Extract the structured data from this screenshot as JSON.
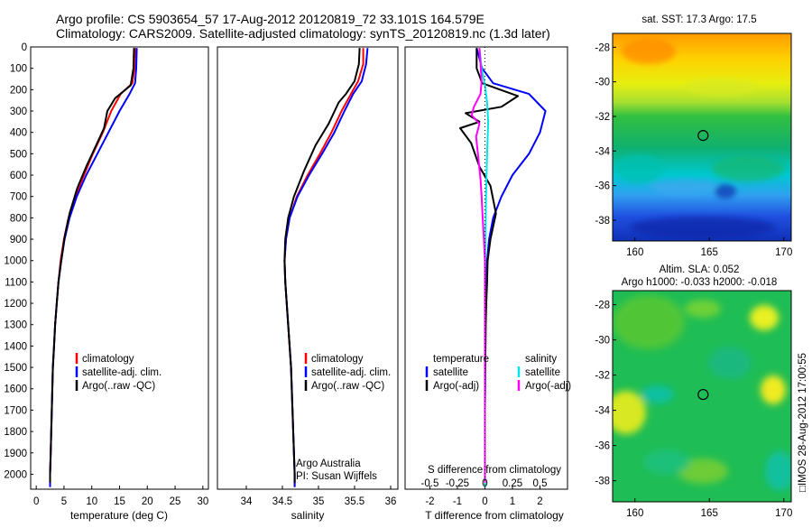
{
  "header": {
    "line1": "Argo profile: CS 5903654_57 17-Aug-2012 20120819_72 33.101S 164.579E",
    "line2": "Climatology: CARS2009. Satellite-adjusted climatology: synTS_20120819.nc (1.3d later)"
  },
  "colors": {
    "red": "#ff0000",
    "blue": "#0000ff",
    "black": "#000000",
    "cyan": "#00e5e5",
    "magenta": "#ff00ff"
  },
  "chart_data": [
    {
      "type": "line",
      "id": "temperature",
      "xlabel": "temperature (deg C)",
      "ylim": [
        2070,
        0
      ],
      "xlim": [
        -1,
        31
      ],
      "xticks": [
        0,
        5,
        10,
        15,
        20,
        25,
        30
      ],
      "yticks": [
        0,
        100,
        200,
        300,
        400,
        500,
        600,
        700,
        800,
        900,
        1000,
        1100,
        1200,
        1300,
        1400,
        1500,
        1600,
        1700,
        1800,
        1900,
        2000
      ],
      "legend": [
        "climatology",
        "satellite-adj. clim.",
        "Argo(..raw -QC)"
      ],
      "series": [
        {
          "name": "climatology",
          "color": "red",
          "points": [
            [
              17.8,
              5
            ],
            [
              17.7,
              100
            ],
            [
              17.3,
              170
            ],
            [
              15.2,
              220
            ],
            [
              13.5,
              300
            ],
            [
              12.0,
              400
            ],
            [
              10.2,
              500
            ],
            [
              8.6,
              600
            ],
            [
              7.0,
              700
            ],
            [
              5.8,
              800
            ],
            [
              5.0,
              900
            ],
            [
              4.4,
              1000
            ],
            [
              4.0,
              1100
            ],
            [
              3.7,
              1200
            ],
            [
              3.4,
              1300
            ],
            [
              3.2,
              1400
            ],
            [
              3.0,
              1500
            ],
            [
              2.9,
              1600
            ],
            [
              2.8,
              1700
            ],
            [
              2.7,
              1800
            ],
            [
              2.6,
              1900
            ],
            [
              2.5,
              2000
            ],
            [
              2.5,
              2060
            ]
          ]
        },
        {
          "name": "satellite-adj. clim.",
          "color": "blue",
          "points": [
            [
              18.1,
              5
            ],
            [
              18.0,
              100
            ],
            [
              17.8,
              170
            ],
            [
              16.8,
              220
            ],
            [
              15.0,
              300
            ],
            [
              13.0,
              400
            ],
            [
              11.0,
              500
            ],
            [
              9.0,
              600
            ],
            [
              7.3,
              700
            ],
            [
              6.0,
              800
            ],
            [
              5.1,
              900
            ],
            [
              4.5,
              1000
            ],
            [
              4.0,
              1100
            ],
            [
              3.7,
              1200
            ],
            [
              3.4,
              1300
            ],
            [
              3.2,
              1400
            ],
            [
              3.0,
              1500
            ],
            [
              2.9,
              1600
            ],
            [
              2.8,
              1700
            ],
            [
              2.7,
              1800
            ],
            [
              2.6,
              1900
            ],
            [
              2.5,
              2000
            ],
            [
              2.5,
              2060
            ]
          ]
        },
        {
          "name": "Argo(..raw -QC)",
          "color": "black",
          "points": [
            [
              17.6,
              5
            ],
            [
              17.5,
              100
            ],
            [
              17.0,
              180
            ],
            [
              14.2,
              240
            ],
            [
              12.8,
              300
            ],
            [
              12.2,
              380
            ],
            [
              10.8,
              460
            ],
            [
              9.0,
              560
            ],
            [
              7.4,
              660
            ],
            [
              6.0,
              780
            ],
            [
              5.1,
              890
            ],
            [
              4.5,
              1000
            ],
            [
              4.0,
              1100
            ],
            [
              3.7,
              1200
            ],
            [
              3.4,
              1300
            ],
            [
              3.2,
              1400
            ],
            [
              3.0,
              1500
            ],
            [
              2.9,
              1600
            ],
            [
              2.8,
              1700
            ],
            [
              2.7,
              1800
            ],
            [
              2.6,
              1900
            ],
            [
              2.5,
              2000
            ],
            [
              2.5,
              2040
            ]
          ]
        }
      ]
    },
    {
      "type": "line",
      "id": "salinity",
      "xlabel": "salinity",
      "ylim": [
        2070,
        0
      ],
      "xlim": [
        33.6,
        36.1
      ],
      "xticks": [
        34,
        34.5,
        35,
        35.5,
        36
      ],
      "legend": [
        "climatology",
        "satellite-adj. clim.",
        "Argo(..raw -QC)"
      ],
      "annotation": [
        "Argo Australia",
        "PI: Susan Wijffels"
      ],
      "series": [
        {
          "name": "climatology",
          "color": "red",
          "points": [
            [
              35.62,
              5
            ],
            [
              35.62,
              80
            ],
            [
              35.55,
              160
            ],
            [
              35.45,
              220
            ],
            [
              35.32,
              300
            ],
            [
              35.18,
              400
            ],
            [
              35.02,
              500
            ],
            [
              34.85,
              600
            ],
            [
              34.7,
              700
            ],
            [
              34.6,
              800
            ],
            [
              34.55,
              900
            ],
            [
              34.53,
              1000
            ],
            [
              34.54,
              1100
            ],
            [
              34.56,
              1200
            ],
            [
              34.58,
              1300
            ],
            [
              34.6,
              1400
            ],
            [
              34.62,
              1500
            ],
            [
              34.63,
              1600
            ],
            [
              34.64,
              1700
            ],
            [
              34.65,
              1800
            ],
            [
              34.66,
              1900
            ],
            [
              34.67,
              2000
            ],
            [
              34.67,
              2060
            ]
          ]
        },
        {
          "name": "satellite-adj. clim.",
          "color": "blue",
          "points": [
            [
              35.68,
              5
            ],
            [
              35.66,
              80
            ],
            [
              35.6,
              160
            ],
            [
              35.48,
              220
            ],
            [
              35.36,
              300
            ],
            [
              35.22,
              400
            ],
            [
              35.05,
              500
            ],
            [
              34.87,
              600
            ],
            [
              34.71,
              700
            ],
            [
              34.6,
              800
            ],
            [
              34.55,
              900
            ],
            [
              34.53,
              1000
            ],
            [
              34.54,
              1100
            ],
            [
              34.56,
              1200
            ],
            [
              34.58,
              1300
            ],
            [
              34.6,
              1400
            ],
            [
              34.62,
              1500
            ],
            [
              34.63,
              1600
            ],
            [
              34.64,
              1700
            ],
            [
              34.65,
              1800
            ],
            [
              34.66,
              1900
            ],
            [
              34.67,
              2000
            ],
            [
              34.67,
              2060
            ]
          ]
        },
        {
          "name": "Argo(..raw -QC)",
          "color": "black",
          "points": [
            [
              35.57,
              5
            ],
            [
              35.56,
              80
            ],
            [
              35.5,
              160
            ],
            [
              35.38,
              220
            ],
            [
              35.28,
              260
            ],
            [
              35.14,
              360
            ],
            [
              34.96,
              460
            ],
            [
              34.8,
              580
            ],
            [
              34.66,
              700
            ],
            [
              34.58,
              800
            ],
            [
              34.54,
              900
            ],
            [
              34.53,
              1000
            ],
            [
              34.54,
              1100
            ],
            [
              34.56,
              1200
            ],
            [
              34.58,
              1300
            ],
            [
              34.6,
              1400
            ],
            [
              34.62,
              1500
            ],
            [
              34.63,
              1600
            ],
            [
              34.64,
              1700
            ],
            [
              34.65,
              1800
            ],
            [
              34.66,
              1900
            ],
            [
              34.67,
              2000
            ],
            [
              34.67,
              2040
            ]
          ]
        }
      ]
    },
    {
      "type": "line",
      "id": "difference",
      "xlabel": "T difference from climatology",
      "xlabel_top": "S difference from climatology",
      "ylim": [
        2070,
        0
      ],
      "xlim": [
        -2.9,
        3.0
      ],
      "xticks": [
        -2,
        -1,
        0,
        1,
        2
      ],
      "xticks_s": [
        "-0.5",
        "-0.25",
        "0",
        "0.25",
        "0.5"
      ],
      "legend_headers": [
        "temperature",
        "salinity"
      ],
      "legend_left": [
        "satellite",
        "Argo(-adj)"
      ],
      "legend_right": [
        "satellite",
        "Argo(-adj)"
      ],
      "series": [
        {
          "name": "T satellite",
          "color": "blue",
          "points": [
            [
              -0.3,
              5
            ],
            [
              -0.1,
              100
            ],
            [
              0.3,
              170
            ],
            [
              1.6,
              220
            ],
            [
              2.2,
              300
            ],
            [
              2.0,
              400
            ],
            [
              1.6,
              500
            ],
            [
              1.0,
              600
            ],
            [
              0.6,
              700
            ],
            [
              0.3,
              800
            ],
            [
              0.15,
              900
            ],
            [
              0.08,
              1000
            ],
            [
              0.05,
              1100
            ],
            [
              0.03,
              1200
            ],
            [
              0.02,
              1300
            ],
            [
              0.02,
              1400
            ],
            [
              0.01,
              1500
            ],
            [
              0.01,
              1600
            ],
            [
              0.0,
              1700
            ],
            [
              0.0,
              1800
            ],
            [
              0.0,
              1900
            ],
            [
              0.0,
              2000
            ],
            [
              0.0,
              2060
            ]
          ]
        },
        {
          "name": "T Argo(-adj)",
          "color": "black",
          "points": [
            [
              -0.3,
              5
            ],
            [
              -0.3,
              100
            ],
            [
              -0.1,
              170
            ],
            [
              1.2,
              230
            ],
            [
              0.6,
              280
            ],
            [
              -0.7,
              310
            ],
            [
              -0.2,
              350
            ],
            [
              -0.9,
              380
            ],
            [
              -0.5,
              450
            ],
            [
              -0.2,
              560
            ],
            [
              0.2,
              650
            ],
            [
              0.4,
              780
            ],
            [
              0.2,
              900
            ],
            [
              0.1,
              1000
            ],
            [
              0.08,
              1100
            ],
            [
              0.05,
              1200
            ],
            [
              0.03,
              1300
            ],
            [
              0.02,
              1400
            ],
            [
              0.01,
              1500
            ],
            [
              0.0,
              1600
            ],
            [
              0.0,
              1700
            ],
            [
              0.0,
              1800
            ],
            [
              0.0,
              1900
            ],
            [
              0.0,
              2000
            ],
            [
              0.0,
              2040
            ]
          ]
        },
        {
          "name": "S satellite",
          "color": "cyan",
          "points": [
            [
              -0.05,
              5
            ],
            [
              -0.03,
              100
            ],
            [
              0.0,
              180
            ],
            [
              0.02,
              260
            ],
            [
              0.03,
              350
            ],
            [
              0.02,
              500
            ],
            [
              0.01,
              700
            ],
            [
              0.005,
              900
            ],
            [
              0.0,
              1100
            ],
            [
              0.0,
              1300
            ],
            [
              0.0,
              1500
            ],
            [
              0.0,
              1700
            ],
            [
              0.0,
              1900
            ],
            [
              0.0,
              2060
            ]
          ]
        },
        {
          "name": "S Argo(-adj)",
          "color": "magenta",
          "points": [
            [
              -0.05,
              5
            ],
            [
              -0.04,
              80
            ],
            [
              -0.03,
              160
            ],
            [
              -0.04,
              220
            ],
            [
              -0.1,
              280
            ],
            [
              -0.12,
              320
            ],
            [
              -0.05,
              360
            ],
            [
              -0.08,
              420
            ],
            [
              -0.06,
              520
            ],
            [
              -0.04,
              620
            ],
            [
              -0.03,
              700
            ],
            [
              -0.02,
              800
            ],
            [
              -0.01,
              900
            ],
            [
              0.0,
              1000
            ],
            [
              0.0,
              1100
            ],
            [
              0.0,
              1200
            ],
            [
              0.0,
              1300
            ],
            [
              0.0,
              1400
            ],
            [
              0.0,
              1500
            ],
            [
              0.0,
              1600
            ],
            [
              0.0,
              1700
            ],
            [
              0.0,
              1800
            ],
            [
              0.0,
              1900
            ],
            [
              0.0,
              2000
            ],
            [
              0.0,
              2040
            ]
          ]
        }
      ]
    },
    {
      "type": "heatmap",
      "id": "sst-map",
      "title": "sat. SST: 17.3  Argo: 17.5",
      "xlim": [
        158.5,
        170.5
      ],
      "ylim": [
        -39.2,
        -27.2
      ],
      "xticks": [
        160,
        165,
        170
      ],
      "yticks": [
        -28,
        -30,
        -32,
        -34,
        -36,
        -38
      ],
      "marker": [
        164.579,
        -33.101
      ]
    },
    {
      "type": "heatmap",
      "id": "sla-map",
      "title": "Altim. SLA: 0.052",
      "subtitle": "Argo h1000: -0.033 h2000: -0.018",
      "xlim": [
        158.5,
        170.5
      ],
      "ylim": [
        -39.2,
        -27.2
      ],
      "xticks": [
        160,
        165,
        170
      ],
      "yticks": [
        -28,
        -30,
        -32,
        -34,
        -36,
        -38
      ],
      "marker": [
        164.579,
        -33.101
      ]
    }
  ],
  "sidebar": {
    "imos_stamp": "□IMOS 28-Aug-2012 17:00:55"
  }
}
